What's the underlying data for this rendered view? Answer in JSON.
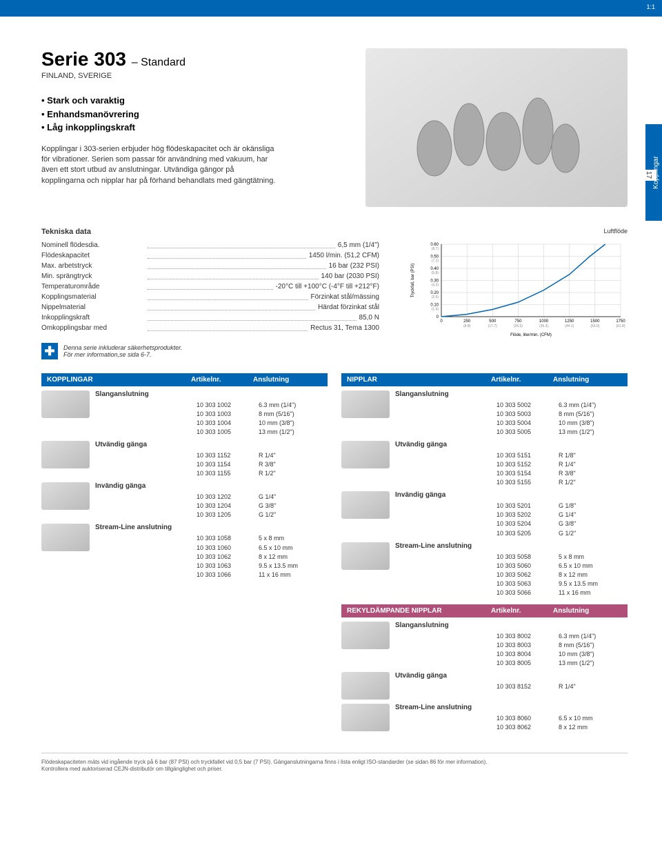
{
  "scale": "1:1",
  "sidebar": {
    "label": "Kopplingar",
    "page": "17"
  },
  "header": {
    "title": "Serie 303",
    "standard": "– Standard",
    "subtitle": "FINLAND, SVERIGE",
    "features": [
      "• Stark och varaktig",
      "• Enhandsmanövrering",
      "• Låg inkopplingskraft"
    ],
    "description": "Kopplingar i 303-serien erbjuder hög flödeskapacitet och är okänsliga för vibrationer. Serien som passar för användning med vakuum, har även ett stort utbud av anslutningar. Utvändiga gängor på kopplingarna och nipplar har på förhand behandlats med gängtätning."
  },
  "tech": {
    "title": "Tekniska data",
    "rows": [
      {
        "label": "Nominell flödesdia.",
        "value": "6,5 mm (1/4\")"
      },
      {
        "label": "Flödeskapacitet",
        "value": "1450 l/min. (51,2 CFM)"
      },
      {
        "label": "Max. arbetstryck",
        "value": "16 bar (232 PSI)"
      },
      {
        "label": "Min. sprängtryck",
        "value": "140 bar (2030 PSI)"
      },
      {
        "label": "Temperaturområde",
        "value": "-20°C till +100°C (-4°F till +212°F)"
      },
      {
        "label": "Kopplingsmaterial",
        "value": "Förzinkat stål/mässing"
      },
      {
        "label": "Nippelmaterial",
        "value": "Härdat förzinkat stål"
      },
      {
        "label": "Inkopplingskraft",
        "value": "85,0 N"
      },
      {
        "label": "Omkopplingsbar med",
        "value": "Rectus 31, Tema 1300"
      }
    ]
  },
  "safety": {
    "text1": "Denna serie inkluderar säkerhetsprodukter.",
    "text2": "För mer information,se sida 6-7."
  },
  "chart": {
    "title": "Luftflöde",
    "ylabel": "Tryckfall, bar (PSI)",
    "xlabel": "Flöde, liter/min. (CFM)",
    "yticks": [
      {
        "v": "0.60",
        "p": "(8.7)"
      },
      {
        "v": "0.50",
        "p": "(7.2)"
      },
      {
        "v": "0.40",
        "p": "(5.8)"
      },
      {
        "v": "0.30",
        "p": "(4.3)"
      },
      {
        "v": "0.20",
        "p": "(2.9)"
      },
      {
        "v": "0.10",
        "p": "(1.4)"
      },
      {
        "v": "0",
        "p": ""
      }
    ],
    "xticks": [
      {
        "v": "0",
        "p": ""
      },
      {
        "v": "250",
        "p": "(8.8)"
      },
      {
        "v": "500",
        "p": "(17.7)"
      },
      {
        "v": "750",
        "p": "(26.5)"
      },
      {
        "v": "1000",
        "p": "(35.3)"
      },
      {
        "v": "1250",
        "p": "(44.1)"
      },
      {
        "v": "1500",
        "p": "(53.0)"
      },
      {
        "v": "1750",
        "p": "(61.8)"
      }
    ],
    "curve": [
      [
        0,
        0
      ],
      [
        250,
        0.02
      ],
      [
        500,
        0.06
      ],
      [
        750,
        0.12
      ],
      [
        1000,
        0.22
      ],
      [
        1250,
        0.35
      ],
      [
        1450,
        0.5
      ],
      [
        1600,
        0.6
      ]
    ],
    "line_color": "#0066b3",
    "grid_color": "#cccccc",
    "bg_color": "#ffffff"
  },
  "left_table": {
    "header": {
      "t1": "KOPPLINGAR",
      "t2": "Artikelnr.",
      "t3": "Anslutning"
    },
    "groups": [
      {
        "label": "Slanganslutning",
        "rows": [
          {
            "a": "10 303 1002",
            "b": "6.3 mm (1/4\")"
          },
          {
            "a": "10 303 1003",
            "b": "8 mm (5/16\")"
          },
          {
            "a": "10 303 1004",
            "b": "10 mm (3/8\")"
          },
          {
            "a": "10 303 1005",
            "b": "13 mm (1/2\")"
          }
        ]
      },
      {
        "label": "Utvändig gänga",
        "rows": [
          {
            "a": "10 303 1152",
            "b": "R 1/4\""
          },
          {
            "a": "10 303 1154",
            "b": "R 3/8\""
          },
          {
            "a": "10 303 1155",
            "b": "R 1/2\""
          }
        ]
      },
      {
        "label": "Invändig gänga",
        "rows": [
          {
            "a": "10 303 1202",
            "b": "G 1/4\""
          },
          {
            "a": "10 303 1204",
            "b": "G 3/8\""
          },
          {
            "a": "10 303 1205",
            "b": "G 1/2\""
          }
        ]
      },
      {
        "label": "Stream-Line anslutning",
        "rows": [
          {
            "a": "10 303 1058",
            "b": "5 x 8 mm"
          },
          {
            "a": "10 303 1060",
            "b": "6.5 x 10 mm"
          },
          {
            "a": "10 303 1062",
            "b": "8 x 12 mm"
          },
          {
            "a": "10 303 1063",
            "b": "9.5 x 13.5 mm"
          },
          {
            "a": "10 303 1066",
            "b": "11 x 16 mm"
          }
        ]
      }
    ]
  },
  "right_table": {
    "header": {
      "t1": "NIPPLAR",
      "t2": "Artikelnr.",
      "t3": "Anslutning"
    },
    "groups": [
      {
        "label": "Slanganslutning",
        "rows": [
          {
            "a": "10 303 5002",
            "b": "6.3 mm (1/4\")"
          },
          {
            "a": "10 303 5003",
            "b": "8 mm (5/16\")"
          },
          {
            "a": "10 303 5004",
            "b": "10 mm (3/8\")"
          },
          {
            "a": "10 303 5005",
            "b": "13 mm (1/2\")"
          }
        ]
      },
      {
        "label": "Utvändig gänga",
        "rows": [
          {
            "a": "10 303 5151",
            "b": "R 1/8\""
          },
          {
            "a": "10 303 5152",
            "b": "R 1/4\""
          },
          {
            "a": "10 303 5154",
            "b": "R 3/8\""
          },
          {
            "a": "10 303 5155",
            "b": "R 1/2\""
          }
        ]
      },
      {
        "label": "Invändig gänga",
        "rows": [
          {
            "a": "10 303 5201",
            "b": "G 1/8\""
          },
          {
            "a": "10 303 5202",
            "b": "G 1/4\""
          },
          {
            "a": "10 303 5204",
            "b": "G 3/8\""
          },
          {
            "a": "10 303 5205",
            "b": "G 1/2\""
          }
        ]
      },
      {
        "label": "Stream-Line anslutning",
        "rows": [
          {
            "a": "10 303 5058",
            "b": "5 x 8 mm"
          },
          {
            "a": "10 303 5060",
            "b": "6.5 x 10 mm"
          },
          {
            "a": "10 303 5062",
            "b": "8 x 12 mm"
          },
          {
            "a": "10 303 5063",
            "b": "9.5 x 13.5 mm"
          },
          {
            "a": "10 303 5066",
            "b": "11 x 16 mm"
          }
        ]
      }
    ]
  },
  "pink_table": {
    "header": {
      "t1": "REKYLDÄMPANDE NIPPLAR",
      "t2": "Artikelnr.",
      "t3": "Anslutning"
    },
    "groups": [
      {
        "label": "Slanganslutning",
        "rows": [
          {
            "a": "10 303 8002",
            "b": "6.3 mm (1/4\")"
          },
          {
            "a": "10 303 8003",
            "b": "8 mm (5/16\")"
          },
          {
            "a": "10 303 8004",
            "b": "10 mm (3/8\")"
          },
          {
            "a": "10 303 8005",
            "b": "13 mm (1/2\")"
          }
        ]
      },
      {
        "label": "Utvändig gänga",
        "rows": [
          {
            "a": "10 303 8152",
            "b": "R 1/4\""
          }
        ]
      },
      {
        "label": "Stream-Line anslutning",
        "rows": [
          {
            "a": "10 303 8060",
            "b": "6.5 x 10 mm"
          },
          {
            "a": "10 303 8062",
            "b": "8 x 12 mm"
          }
        ]
      }
    ]
  },
  "footer": {
    "line1": "Flödeskapaciteten mäts vid ingående tryck på 6 bar (87 PSI) och tryckfallet vid 0,5 bar (7 PSI). Gänganslutningarna finns i lista enligt ISO-standarder (se sidan 86 för mer information).",
    "line2": "Kontrollera med auktoriserad CEJN-distributör om tillgänglighet och priser."
  }
}
